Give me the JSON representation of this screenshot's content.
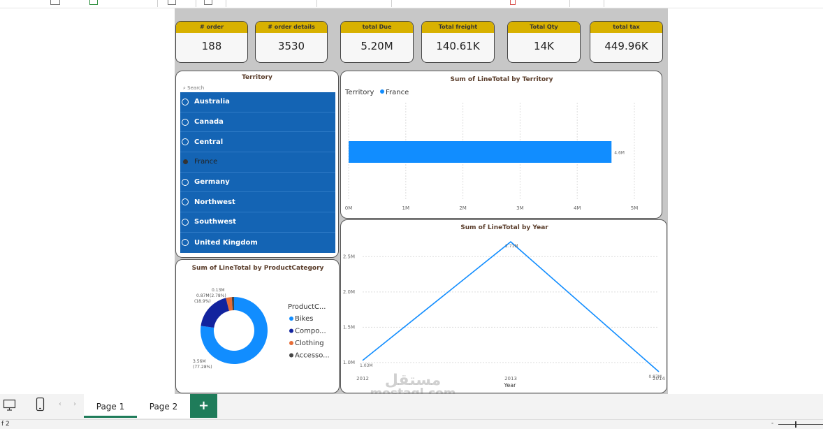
{
  "cards": [
    {
      "label": "# order",
      "value": "188"
    },
    {
      "label": "# order details",
      "value": "3530"
    },
    {
      "label": "total Due",
      "value": "5.20M"
    },
    {
      "label": "Total freight",
      "value": "140.61K"
    },
    {
      "label": "Total Qty",
      "value": "14K"
    },
    {
      "label": "total tax",
      "value": "449.96K"
    }
  ],
  "slicer": {
    "title": "Territory",
    "search_placeholder": "Search",
    "items": [
      "Australia",
      "Canada",
      "Central",
      "France",
      "Germany",
      "Northwest",
      "Southwest",
      "United Kingdom"
    ],
    "selected": "France"
  },
  "chart_data": [
    {
      "type": "bar",
      "title": "Sum of LineTotal by Territory",
      "legend_title": "Territory",
      "legend_position": "top-left",
      "categories": [
        "France"
      ],
      "values": [
        4.6
      ],
      "data_labels": [
        "4.6M"
      ],
      "xlim": [
        0,
        5
      ],
      "x_ticks": [
        "0M",
        "1M",
        "2M",
        "3M",
        "4M",
        "5M"
      ],
      "grid": true,
      "color": "#118DFF"
    },
    {
      "type": "line",
      "title": "Sum of LineTotal by Year",
      "xlabel": "Year",
      "x": [
        "2012",
        "2013",
        "2014"
      ],
      "values": [
        1.03,
        2.71,
        0.87
      ],
      "data_labels": [
        "1.03M",
        "2.71M",
        "0.87M"
      ],
      "ylim": [
        0.9,
        2.8
      ],
      "y_ticks": [
        {
          "value": 1.0,
          "label": "1.0M"
        },
        {
          "value": 1.5,
          "label": "1.5M"
        },
        {
          "value": 2.0,
          "label": "2.0M"
        },
        {
          "value": 2.5,
          "label": "2.5M"
        }
      ],
      "grid": true,
      "color": "#118DFF"
    },
    {
      "type": "pie",
      "title": "Sum of LineTotal by ProductCategory",
      "legend_title": "ProductC...",
      "legend_position": "right",
      "slices": [
        {
          "name": "Bikes",
          "legend_label": "Bikes",
          "value": 3.56,
          "label": "3.56M",
          "pct": "(77.28%)",
          "color": "#118DFF"
        },
        {
          "name": "Components",
          "legend_label": "Compo...",
          "value": 0.87,
          "label": "0.87M",
          "pct": "(18.9%)",
          "color": "#12239E"
        },
        {
          "name": "Clothing",
          "legend_label": "Clothing",
          "value": 0.13,
          "label": "0.13M",
          "pct": "(2.78%)",
          "color": "#E66C37"
        },
        {
          "name": "Accessories",
          "legend_label": "Accesso...",
          "value": 0.05,
          "label": "",
          "pct": "",
          "color": "#444444"
        }
      ]
    }
  ],
  "tabs": {
    "page1": "Page 1",
    "page2": "Page 2",
    "add": "+"
  },
  "status": {
    "page_info": "f 2",
    "zoom_minus": "-"
  },
  "watermark": {
    "arabic": "مستقل",
    "latin": "mostaql.com"
  },
  "icons": [
    "desktop-icon",
    "phone-icon",
    "chevron-left-icon",
    "chevron-right-icon",
    "search-icon"
  ]
}
